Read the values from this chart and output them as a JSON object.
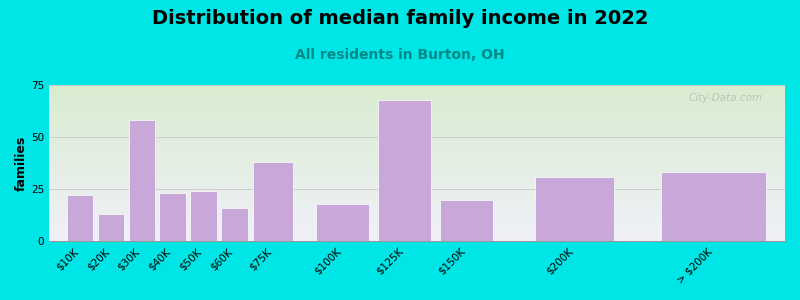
{
  "title": "Distribution of median family income in 2022",
  "subtitle": "All residents in Burton, OH",
  "ylabel": "families",
  "categories": [
    "$10K",
    "$20K",
    "$30K",
    "$40K",
    "$50K",
    "$60K",
    "$75K",
    "$100K",
    "$125K",
    "$150K",
    "$200K",
    "> $200K"
  ],
  "values": [
    22,
    13,
    58,
    23,
    24,
    16,
    38,
    18,
    68,
    20,
    31,
    33
  ],
  "bar_positions": [
    0,
    1,
    2,
    3,
    4,
    5,
    6,
    8,
    10,
    12,
    15,
    19
  ],
  "bar_widths": [
    1,
    1,
    1,
    1,
    1,
    1,
    1.5,
    2,
    2,
    2,
    3,
    4
  ],
  "bar_color": "#c8a8d8",
  "bar_edgecolor": "#ffffff",
  "ylim": [
    0,
    75
  ],
  "yticks": [
    0,
    25,
    50,
    75
  ],
  "background_color": "#00e5e5",
  "plot_bg_top": "#d8ecd0",
  "plot_bg_bottom": "#f0f0f8",
  "title_fontsize": 14,
  "subtitle_fontsize": 10,
  "subtitle_color": "#008888",
  "ylabel_fontsize": 9,
  "watermark_text": "City-Data.com",
  "grid_color": "#cccccc",
  "tick_fontsize": 7.5
}
